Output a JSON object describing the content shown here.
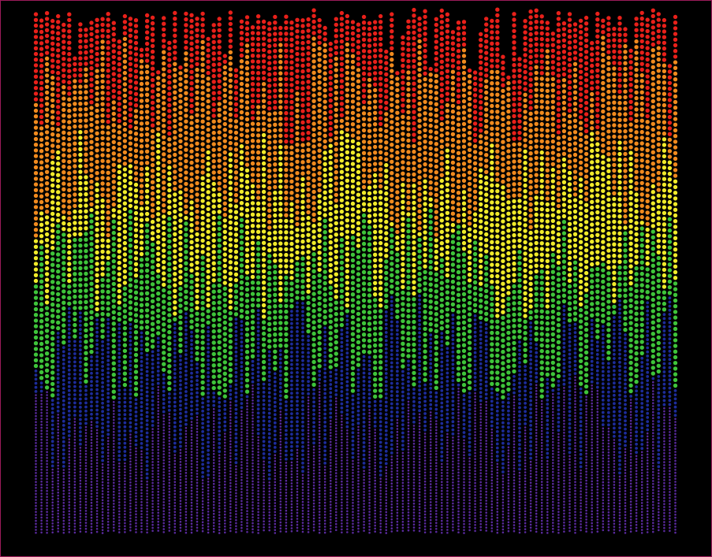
{
  "artwork": {
    "description_free": true,
    "band_colors": [
      {
        "name": "red",
        "color": "#e8201a"
      },
      {
        "name": "orange",
        "color": "#f08a1e"
      },
      {
        "name": "yellow",
        "color": "#f0ea2a"
      },
      {
        "name": "green",
        "color": "#3ec43a"
      },
      {
        "name": "blue",
        "color": "#1d2c9a"
      },
      {
        "name": "purple",
        "color": "#5a2a9e"
      }
    ],
    "dot_outline_color": "#000000",
    "background_color": "#000000",
    "border_color": "#9b1b5a"
  }
}
